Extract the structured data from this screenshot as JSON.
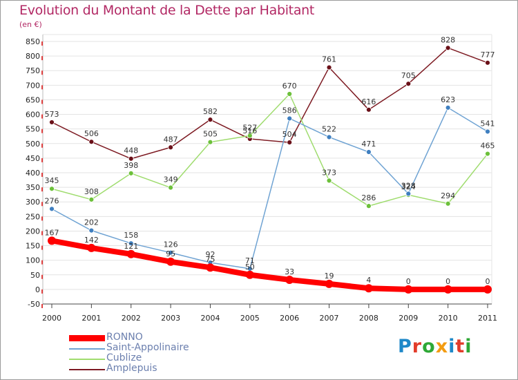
{
  "title": "Evolution du Montant de la Dette par Habitant",
  "subtitle": "(en €)",
  "logo": {
    "text": "Proxiti",
    "letter_colors": [
      "#1e88c8",
      "#e23c2a",
      "#2ea836",
      "#f39c12",
      "#1e88c8",
      "#e23c2a",
      "#2ea836"
    ]
  },
  "chart_data": {
    "type": "line",
    "title": "Evolution du Montant de la Dette par Habitant",
    "subtitle": "(en €)",
    "x": [
      "2000",
      "2001",
      "2002",
      "2003",
      "2004",
      "2005",
      "2006",
      "2007",
      "2008",
      "2009",
      "2010",
      "2011"
    ],
    "y_ticks": [
      -50,
      0,
      50,
      100,
      150,
      200,
      250,
      300,
      350,
      400,
      450,
      500,
      550,
      600,
      650,
      700,
      750,
      800,
      850
    ],
    "ylim": [
      -50,
      850
    ],
    "grid": "horizontal",
    "legend_position": "bottom-left",
    "series": [
      {
        "name": "Amplepuis",
        "color": "#7d1a22",
        "point_color": "#6a1018",
        "values": [
          573,
          506,
          448,
          487,
          582,
          516,
          504,
          761,
          616,
          705,
          828,
          777
        ],
        "labels": [
          "573",
          "506",
          "448",
          "487",
          "582",
          "516",
          "504",
          "761",
          "616",
          "705",
          "828",
          "777"
        ]
      },
      {
        "name": "Cublize",
        "color": "#9fdc6e",
        "point_color": "#6cc03a",
        "values": [
          345,
          308,
          398,
          349,
          505,
          527,
          670,
          373,
          286,
          324,
          294,
          465
        ],
        "labels": [
          "345",
          "308",
          "398",
          "349",
          "505",
          "527",
          "670",
          "373",
          "286",
          "324",
          "294",
          "465"
        ]
      },
      {
        "name": "Saint-Appolinaire",
        "color": "#6fa3d3",
        "point_color": "#3f7fc0",
        "values": [
          276,
          202,
          158,
          126,
          92,
          71,
          586,
          522,
          471,
          328,
          623,
          541
        ],
        "labels": [
          "276",
          "202",
          "158",
          "126",
          "92",
          "71",
          "586",
          "522",
          "471",
          "328",
          "623",
          "541"
        ]
      },
      {
        "name": "RONNO",
        "color": "#ff0000",
        "point_color": "#ff0000",
        "values": [
          167,
          142,
          121,
          95,
          75,
          50,
          33,
          19,
          4,
          0,
          0,
          0
        ],
        "labels": [
          "167",
          "142",
          "121",
          "95",
          "75",
          "50",
          "33",
          "19",
          "4",
          "0",
          "0",
          "0"
        ]
      }
    ],
    "legend": [
      {
        "name": "RONNO",
        "color": "#ff0000",
        "thick": true
      },
      {
        "name": "Saint-Appolinaire",
        "color": "#6fa3d3",
        "thick": false
      },
      {
        "name": "Cublize",
        "color": "#9fdc6e",
        "thick": false
      },
      {
        "name": "Amplepuis",
        "color": "#7d1a22",
        "thick": false
      }
    ]
  }
}
